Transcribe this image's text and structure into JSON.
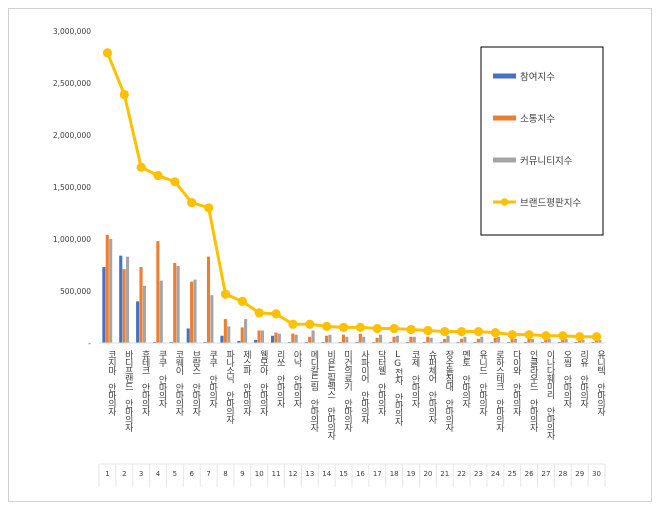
{
  "chart_data": {
    "type": "bar",
    "title": "",
    "xlabel": "",
    "ylabel": "",
    "ylim": [
      0,
      3000000
    ],
    "yticks": [
      0,
      500000,
      1000000,
      1500000,
      2000000,
      2500000,
      3000000
    ],
    "ytick_labels": [
      "-",
      "500,000",
      "1,000,000",
      "1,500,000",
      "2,000,000",
      "2,500,000",
      "3,000,000"
    ],
    "grid": false,
    "legend_position": "top-right",
    "categories": [
      "코지마 안마의자",
      "바디프랜드 안마의자",
      "휴테크 안마의자",
      "쿠쿠 안마의자",
      "코웨이 안마의자",
      "브람스 안마의자",
      "쿠쿠 안마의자",
      "파나소닉 안마의자",
      "제스파 안마의자",
      "웰모아 안마의자",
      "리쏘 안마의자",
      "아낙 안마의자",
      "메디칼드림 안마의자",
      "비욘드릴렉스 안마의자",
      "미건의료기 안마의자",
      "사파이어 안마의자",
      "닥터웰 안마의자",
      "LG전자 안마의자",
      "코제 안마의자",
      "슈퍼체어 안마의자",
      "장수돌침대 안마의자",
      "멘토 안마의자",
      "유니드 안마의자",
      "로하스테크 안마의자",
      "다이와 안마의자",
      "인클라우드 안마의자",
      "이나다훼미리 안마의자",
      "오씸 안마의자",
      "리유 안마의자",
      "유니텍 안마의자"
    ],
    "ranks": [
      "1",
      "2",
      "3",
      "4",
      "5",
      "6",
      "7",
      "8",
      "9",
      "10",
      "11",
      "12",
      "13",
      "14",
      "15",
      "16",
      "17",
      "18",
      "19",
      "20",
      "21",
      "22",
      "23",
      "24",
      "25",
      "26",
      "27",
      "28",
      "29",
      "30"
    ],
    "series": [
      {
        "name": "참여지수",
        "type": "bar",
        "color": "#4472c4",
        "values": [
          730000,
          840000,
          400000,
          10000,
          10000,
          140000,
          10000,
          70000,
          20000,
          30000,
          70000,
          10000,
          10000,
          10000,
          10000,
          10000,
          10000,
          10000,
          10000,
          10000,
          10000,
          10000,
          10000,
          10000,
          10000,
          10000,
          10000,
          10000,
          10000,
          10000
        ]
      },
      {
        "name": "소통지수",
        "type": "bar",
        "color": "#ed7d31",
        "values": [
          1040000,
          710000,
          730000,
          980000,
          770000,
          590000,
          830000,
          230000,
          150000,
          120000,
          100000,
          90000,
          60000,
          70000,
          80000,
          90000,
          50000,
          60000,
          60000,
          60000,
          40000,
          40000,
          40000,
          50000,
          40000,
          40000,
          30000,
          30000,
          30000,
          30000
        ]
      },
      {
        "name": "커뮤니티지수",
        "type": "bar",
        "color": "#a5a5a5",
        "values": [
          1000000,
          830000,
          550000,
          600000,
          740000,
          610000,
          460000,
          160000,
          230000,
          120000,
          90000,
          80000,
          120000,
          80000,
          60000,
          60000,
          80000,
          70000,
          60000,
          50000,
          70000,
          60000,
          60000,
          60000,
          40000,
          40000,
          40000,
          40000,
          30000,
          30000
        ]
      },
      {
        "name": "브랜드평판지수",
        "type": "line",
        "color": "#ffc000",
        "values": [
          2790000,
          2390000,
          1690000,
          1610000,
          1550000,
          1350000,
          1300000,
          470000,
          400000,
          290000,
          280000,
          180000,
          180000,
          160000,
          150000,
          150000,
          140000,
          140000,
          130000,
          120000,
          110000,
          110000,
          110000,
          100000,
          80000,
          80000,
          70000,
          70000,
          60000,
          60000
        ]
      }
    ]
  }
}
